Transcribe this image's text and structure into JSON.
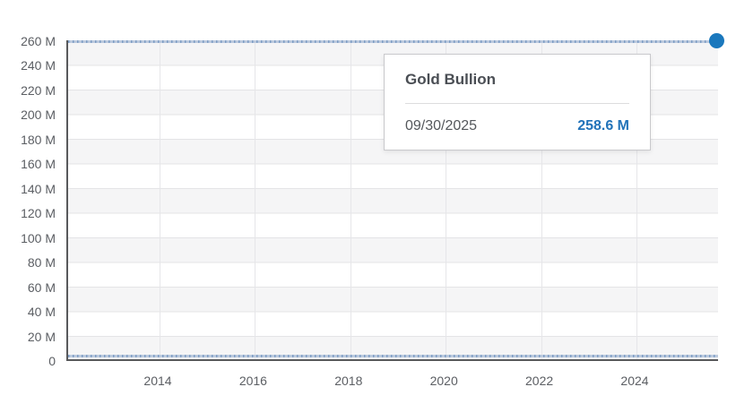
{
  "chart": {
    "tooltip": {
      "title": "Gold Bullion",
      "date": "09/30/2025",
      "value": "258.6 M"
    },
    "y_axis": {
      "ticks": [
        "260 M",
        "240 M",
        "220 M",
        "200 M",
        "180 M",
        "160 M",
        "140 M",
        "120 M",
        "100 M",
        "80 M",
        "60 M",
        "40 M",
        "20 M",
        "0"
      ]
    },
    "x_axis": {
      "ticks": [
        "2014",
        "2016",
        "2018",
        "2020",
        "2022",
        "2024"
      ]
    },
    "colors": {
      "accent_blue": "#1a78bd",
      "value_text_blue": "#2273b9",
      "line_base": "#bccade",
      "line_tick": "#7f9ec5",
      "band_gray": "#f5f5f6",
      "gridline": "#e4e4e6",
      "axis_line": "#58595b",
      "label_gray": "#5b5e63"
    }
  },
  "chart_data": {
    "type": "line",
    "title": "Gold Bullion",
    "xlabel": "",
    "ylabel": "",
    "x_ticks": [
      "2014",
      "2016",
      "2018",
      "2020",
      "2022",
      "2024"
    ],
    "x_range_approx": [
      "2012-01",
      "2025-09-30"
    ],
    "y_ticks": [
      "260 M",
      "240 M",
      "220 M",
      "200 M",
      "180 M",
      "160 M",
      "140 M",
      "120 M",
      "100 M",
      "80 M",
      "60 M",
      "40 M",
      "20 M",
      "0"
    ],
    "ylim_millions": [
      0,
      260
    ],
    "grid": "horizontal gridlines every 20M with alternating gray/white bands; vertical gridlines at each labeled year",
    "legend": "none (hover tooltip only)",
    "series": [
      {
        "name": "Gold Bullion",
        "unit": "millions",
        "shape": "flat horizontal line across entire x range",
        "approx_value_millions": 258.6,
        "points": [
          {
            "date": "09/30/2025",
            "value_millions": 258.6,
            "label": "258.6 M",
            "highlighted": true
          }
        ]
      },
      {
        "name": "unlabeled lower series",
        "unit": "millions",
        "shape": "flat horizontal line across entire x range",
        "approx_value_millions": 3
      }
    ]
  }
}
